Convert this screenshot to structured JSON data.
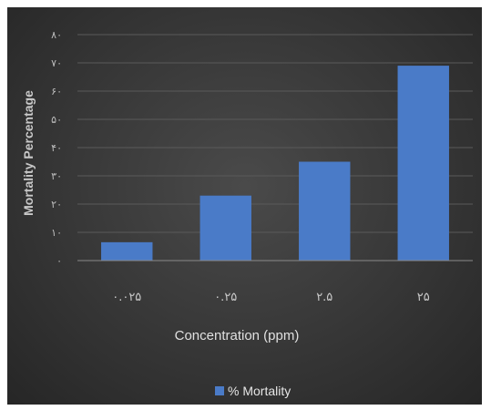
{
  "chart_data": {
    "type": "bar",
    "categories": [
      "۰.۰۲۵",
      "۰.۲۵",
      "۲.۵",
      "۲۵"
    ],
    "series": [
      {
        "name": "% Mortality",
        "values": [
          6.5,
          23,
          35,
          69
        ]
      }
    ],
    "ylim": [
      0,
      80
    ],
    "yticks": [
      0,
      10,
      20,
      30,
      40,
      50,
      60,
      70,
      80
    ],
    "ytick_labels": [
      "۰",
      "۱۰",
      "۲۰",
      "۳۰",
      "۴۰",
      "۵۰",
      "۶۰",
      "۷۰",
      "۸۰"
    ],
    "xlabel": "Concentration (ppm)",
    "ylabel": "Mortality Percentage",
    "grid": true,
    "legend_position": "bottom",
    "colors": {
      "bar": "#4a7bc8",
      "grid": "#5a5a5a",
      "axis": "#8a8a8a"
    }
  }
}
